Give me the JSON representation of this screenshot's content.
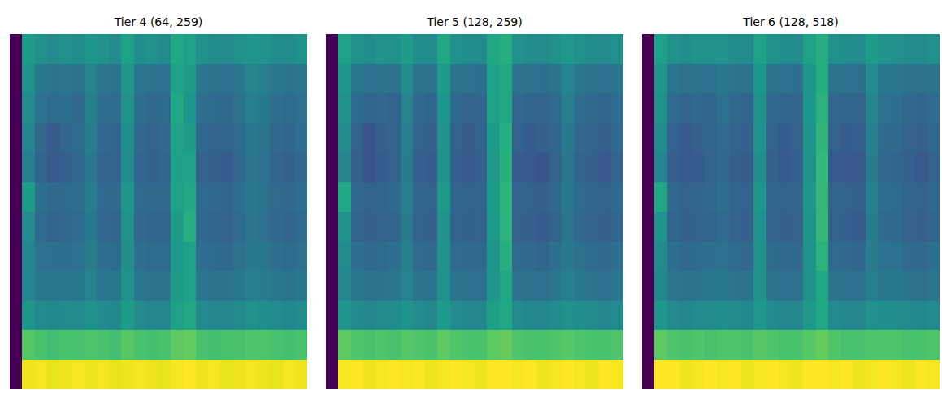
{
  "chart_data": [
    {
      "type": "heatmap",
      "title": "Tier 4 (64, 259)",
      "color": "viridis",
      "tick_labels": false,
      "z": [
        [
          2,
          48,
          44,
          42,
          44,
          43,
          46,
          44,
          42,
          50,
          43,
          44,
          42,
          52,
          50,
          44,
          43,
          42,
          44,
          46,
          45,
          43,
          42,
          44
        ],
        [
          2,
          44,
          36,
          34,
          35,
          34,
          40,
          35,
          34,
          46,
          35,
          34,
          33,
          50,
          48,
          35,
          34,
          33,
          35,
          40,
          38,
          35,
          34,
          35
        ],
        [
          2,
          42,
          33,
          31,
          32,
          30,
          38,
          32,
          31,
          44,
          32,
          30,
          31,
          52,
          46,
          32,
          31,
          30,
          33,
          38,
          36,
          32,
          31,
          33
        ],
        [
          2,
          40,
          30,
          26,
          29,
          31,
          37,
          30,
          29,
          43,
          30,
          28,
          30,
          50,
          48,
          30,
          28,
          29,
          31,
          36,
          34,
          30,
          29,
          32
        ],
        [
          2,
          38,
          29,
          25,
          27,
          30,
          36,
          29,
          28,
          42,
          29,
          27,
          29,
          49,
          50,
          28,
          27,
          26,
          30,
          35,
          33,
          29,
          27,
          30
        ],
        [
          2,
          48,
          32,
          30,
          31,
          32,
          37,
          31,
          30,
          46,
          31,
          30,
          30,
          50,
          52,
          31,
          30,
          29,
          32,
          36,
          34,
          31,
          30,
          32
        ],
        [
          2,
          42,
          31,
          29,
          30,
          31,
          36,
          30,
          29,
          44,
          30,
          29,
          29,
          48,
          54,
          30,
          29,
          28,
          31,
          35,
          33,
          30,
          29,
          31
        ],
        [
          2,
          40,
          33,
          32,
          32,
          33,
          37,
          32,
          31,
          43,
          32,
          31,
          31,
          47,
          50,
          32,
          31,
          30,
          33,
          36,
          35,
          32,
          31,
          33
        ],
        [
          2,
          40,
          36,
          35,
          35,
          36,
          39,
          35,
          35,
          44,
          35,
          34,
          34,
          47,
          50,
          35,
          34,
          34,
          36,
          38,
          37,
          35,
          34,
          36
        ],
        [
          2,
          46,
          42,
          41,
          42,
          42,
          44,
          42,
          41,
          48,
          42,
          41,
          41,
          50,
          52,
          42,
          41,
          41,
          42,
          44,
          43,
          42,
          41,
          42
        ],
        [
          2,
          64,
          62,
          61,
          62,
          62,
          63,
          62,
          61,
          64,
          62,
          61,
          62,
          65,
          66,
          62,
          61,
          62,
          62,
          63,
          63,
          62,
          61,
          62
        ],
        [
          2,
          84,
          85,
          83,
          84,
          85,
          84,
          85,
          83,
          84,
          85,
          84,
          83,
          85,
          86,
          84,
          85,
          83,
          84,
          85,
          84,
          83,
          85,
          84
        ]
      ]
    },
    {
      "type": "heatmap",
      "title": "Tier 5 (128, 259)",
      "color": "viridis",
      "tick_labels": false,
      "z": [
        [
          2,
          50,
          44,
          43,
          45,
          44,
          48,
          43,
          42,
          52,
          44,
          43,
          42,
          52,
          54,
          44,
          43,
          42,
          44,
          47,
          44,
          43,
          42,
          44
        ],
        [
          2,
          46,
          35,
          33,
          34,
          33,
          42,
          34,
          33,
          48,
          34,
          33,
          32,
          50,
          52,
          34,
          33,
          32,
          34,
          40,
          35,
          34,
          33,
          34
        ],
        [
          2,
          44,
          31,
          29,
          30,
          28,
          40,
          30,
          29,
          46,
          30,
          28,
          29,
          50,
          52,
          30,
          29,
          28,
          31,
          38,
          32,
          30,
          29,
          31
        ],
        [
          2,
          42,
          28,
          24,
          27,
          29,
          38,
          28,
          27,
          45,
          28,
          26,
          28,
          48,
          54,
          28,
          26,
          27,
          29,
          36,
          30,
          28,
          27,
          30
        ],
        [
          2,
          40,
          27,
          24,
          26,
          28,
          37,
          27,
          26,
          44,
          27,
          25,
          27,
          47,
          55,
          26,
          25,
          24,
          28,
          35,
          29,
          27,
          25,
          28
        ],
        [
          2,
          52,
          30,
          28,
          29,
          30,
          38,
          29,
          28,
          47,
          29,
          28,
          29,
          48,
          56,
          29,
          28,
          27,
          30,
          36,
          31,
          29,
          28,
          30
        ],
        [
          2,
          44,
          29,
          27,
          28,
          29,
          37,
          28,
          27,
          45,
          28,
          27,
          28,
          47,
          56,
          28,
          27,
          26,
          29,
          35,
          30,
          28,
          27,
          29
        ],
        [
          2,
          42,
          32,
          30,
          31,
          32,
          38,
          31,
          30,
          44,
          31,
          30,
          30,
          46,
          54,
          31,
          30,
          29,
          32,
          36,
          33,
          31,
          30,
          32
        ],
        [
          2,
          41,
          35,
          34,
          34,
          35,
          39,
          34,
          34,
          44,
          34,
          33,
          33,
          46,
          52,
          34,
          33,
          33,
          35,
          38,
          36,
          34,
          33,
          35
        ],
        [
          2,
          46,
          42,
          41,
          42,
          42,
          45,
          42,
          41,
          48,
          42,
          41,
          41,
          49,
          52,
          42,
          41,
          41,
          42,
          44,
          43,
          42,
          41,
          42
        ],
        [
          2,
          65,
          63,
          62,
          63,
          62,
          64,
          63,
          62,
          65,
          63,
          62,
          62,
          65,
          66,
          63,
          62,
          62,
          63,
          64,
          63,
          62,
          62,
          63
        ],
        [
          2,
          85,
          86,
          84,
          85,
          86,
          85,
          86,
          84,
          85,
          86,
          85,
          84,
          86,
          86,
          85,
          86,
          84,
          85,
          86,
          85,
          84,
          86,
          85
        ]
      ]
    },
    {
      "type": "heatmap",
      "title": "Tier 6 (128, 518)",
      "color": "viridis",
      "tick_labels": false,
      "z": [
        [
          2,
          50,
          44,
          43,
          44,
          44,
          45,
          43,
          42,
          50,
          44,
          43,
          42,
          50,
          54,
          44,
          43,
          42,
          48,
          45,
          44,
          43,
          42,
          44
        ],
        [
          2,
          46,
          35,
          33,
          34,
          33,
          36,
          34,
          33,
          46,
          34,
          33,
          32,
          46,
          54,
          34,
          33,
          32,
          42,
          36,
          35,
          34,
          33,
          34
        ],
        [
          2,
          44,
          31,
          29,
          30,
          29,
          33,
          30,
          29,
          44,
          30,
          29,
          29,
          46,
          56,
          30,
          29,
          28,
          40,
          33,
          32,
          30,
          29,
          31
        ],
        [
          2,
          42,
          28,
          25,
          27,
          29,
          31,
          28,
          27,
          44,
          28,
          26,
          28,
          45,
          57,
          28,
          26,
          27,
          38,
          31,
          30,
          28,
          27,
          30
        ],
        [
          2,
          40,
          27,
          25,
          26,
          28,
          30,
          27,
          26,
          43,
          27,
          25,
          27,
          44,
          58,
          26,
          25,
          25,
          37,
          30,
          29,
          27,
          25,
          28
        ],
        [
          2,
          52,
          30,
          28,
          29,
          30,
          32,
          29,
          28,
          46,
          29,
          28,
          29,
          46,
          58,
          29,
          28,
          27,
          38,
          32,
          31,
          29,
          28,
          30
        ],
        [
          2,
          45,
          29,
          27,
          28,
          29,
          31,
          28,
          27,
          44,
          28,
          27,
          28,
          45,
          58,
          28,
          27,
          26,
          37,
          31,
          30,
          28,
          27,
          29
        ],
        [
          2,
          42,
          32,
          30,
          31,
          32,
          33,
          31,
          30,
          44,
          31,
          30,
          30,
          44,
          56,
          31,
          30,
          29,
          37,
          33,
          33,
          31,
          30,
          32
        ],
        [
          2,
          41,
          35,
          34,
          34,
          35,
          36,
          34,
          34,
          44,
          34,
          33,
          33,
          44,
          52,
          34,
          33,
          33,
          38,
          36,
          36,
          34,
          33,
          35
        ],
        [
          2,
          46,
          42,
          41,
          42,
          42,
          43,
          42,
          41,
          47,
          42,
          41,
          41,
          47,
          52,
          42,
          41,
          41,
          44,
          43,
          43,
          42,
          41,
          42
        ],
        [
          2,
          65,
          63,
          62,
          63,
          62,
          63,
          63,
          62,
          64,
          63,
          62,
          62,
          64,
          66,
          63,
          62,
          62,
          63,
          63,
          63,
          62,
          62,
          63
        ],
        [
          2,
          86,
          86,
          84,
          85,
          86,
          85,
          86,
          84,
          85,
          86,
          85,
          84,
          86,
          86,
          85,
          86,
          84,
          85,
          86,
          85,
          84,
          86,
          85
        ]
      ]
    }
  ]
}
